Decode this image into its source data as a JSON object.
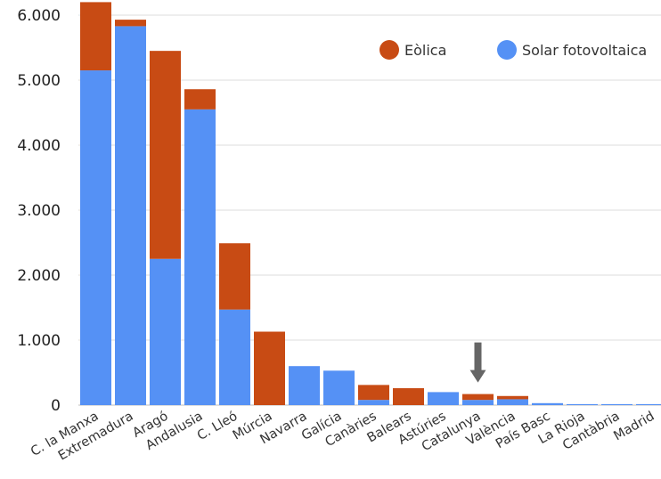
{
  "chart_data": {
    "type": "bar",
    "stacked": true,
    "title": "",
    "xlabel": "",
    "ylabel": "",
    "ylim": [
      0,
      6000
    ],
    "yticks": [
      0,
      1000,
      2000,
      3000,
      4000,
      5000,
      6000
    ],
    "ytick_labels": [
      "0",
      "1.000",
      "2.000",
      "3.000",
      "4.000",
      "5.000",
      "6.000"
    ],
    "grid": "horizontal",
    "legend_position": "top-right",
    "categories": [
      "C. la Manxa",
      "Extremadura",
      "Aragó",
      "Andalusia",
      "C. Lleó",
      "Múrcia",
      "Navarra",
      "Galícia",
      "Canàries",
      "Balears",
      "Astúries",
      "Catalunya",
      "València",
      "País Basc",
      "La Rioja",
      "Cantàbria",
      "Madrid"
    ],
    "series": [
      {
        "name": "Solar fotovoltaica",
        "color": "#5591f5",
        "values": [
          5150,
          5830,
          2250,
          4550,
          1470,
          0,
          600,
          530,
          80,
          0,
          200,
          80,
          90,
          30,
          15,
          15,
          15
        ]
      },
      {
        "name": "Eòlica",
        "color": "#c84b14",
        "values": [
          1050,
          100,
          3200,
          310,
          1020,
          1130,
          0,
          0,
          230,
          260,
          0,
          90,
          50,
          0,
          0,
          0,
          0
        ]
      }
    ],
    "annotations": [
      {
        "type": "arrow-down",
        "category": "Catalunya",
        "color": "#666666"
      }
    ]
  }
}
